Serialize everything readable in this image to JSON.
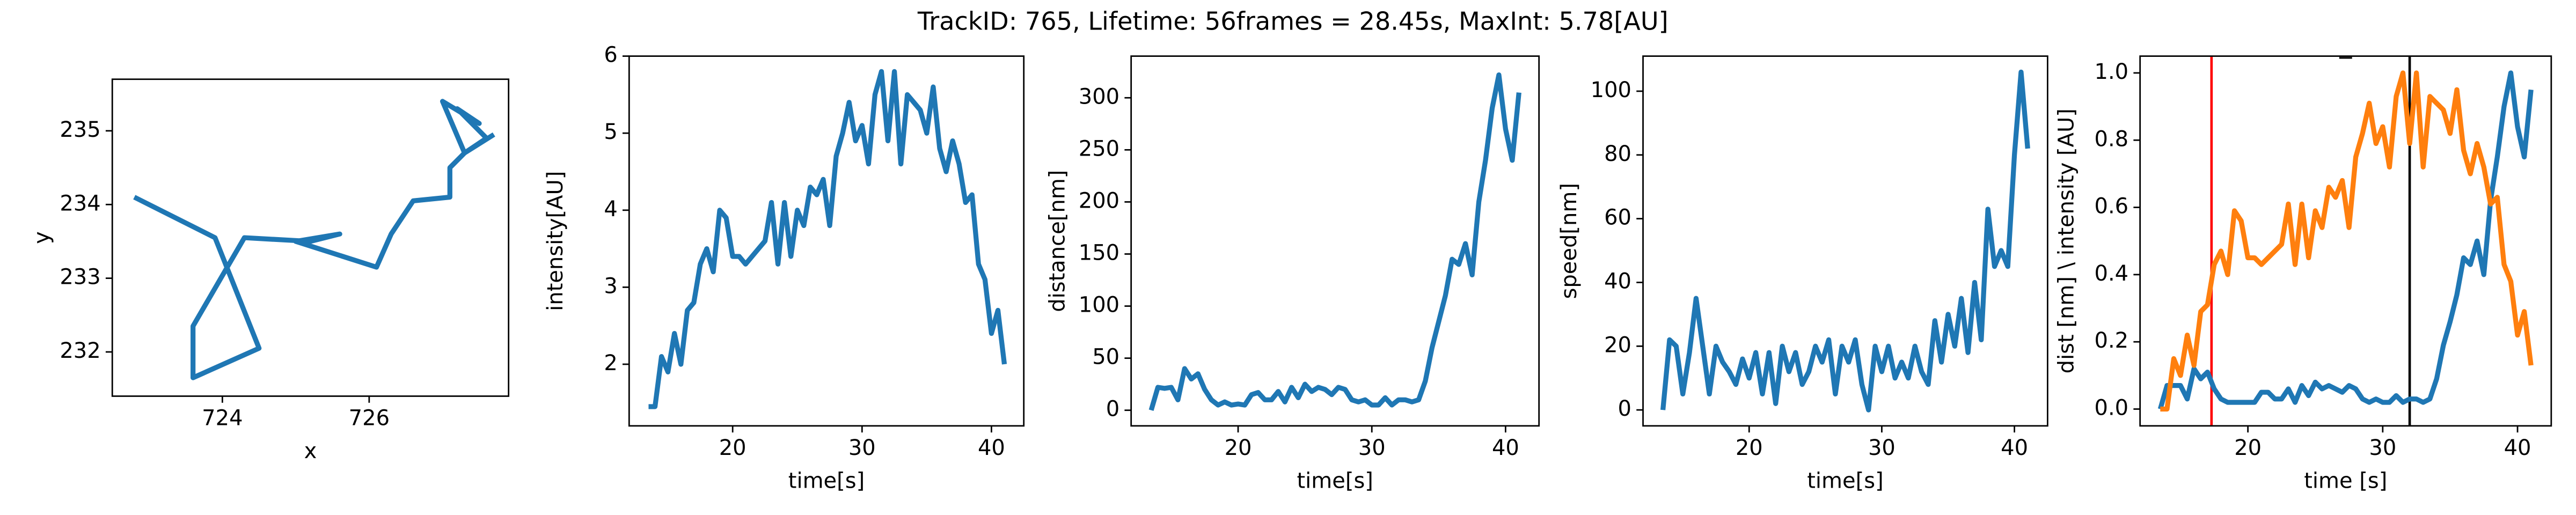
{
  "title": "TrackID: 765, Lifetime: 56frames = 28.45s, MaxInt: 5.78[AU]",
  "chart_data": [
    {
      "type": "line",
      "xlabel": "x",
      "ylabel": "y",
      "x": [
        722.8,
        723.9,
        724.5,
        723.6,
        723.6,
        724.3,
        725.2,
        725.6,
        725.0,
        726.1,
        726.3,
        726.6,
        727.1,
        727.1,
        727.3,
        727.0,
        727.5,
        727.2,
        727.6,
        727.3,
        727.7
      ],
      "series": [
        {
          "color": "#1f77b4",
          "values": [
            234.1,
            233.55,
            232.05,
            231.65,
            232.35,
            233.55,
            233.5,
            233.6,
            233.5,
            233.15,
            233.6,
            234.05,
            234.1,
            234.5,
            234.7,
            235.4,
            235.1,
            235.3,
            234.9,
            234.7,
            234.95
          ]
        }
      ],
      "xlim": [
        722.5,
        727.9
      ],
      "xticks": [
        724,
        726
      ],
      "ylim": [
        231.4,
        235.7
      ],
      "yticks": [
        232,
        233,
        234,
        235
      ]
    },
    {
      "type": "line",
      "xlabel": "time[s]",
      "ylabel": "intensity[AU]",
      "x": [
        13.5,
        14,
        14.5,
        15,
        15.5,
        16,
        16.5,
        17,
        17.5,
        18,
        18.5,
        19,
        19.5,
        20,
        20.5,
        21,
        21.5,
        22,
        22.5,
        23,
        23.5,
        24,
        24.5,
        25,
        25.5,
        26,
        26.5,
        27,
        27.5,
        28,
        28.5,
        29,
        29.5,
        30,
        30.5,
        31,
        31.5,
        32,
        32.5,
        33,
        33.5,
        34,
        34.5,
        35,
        35.5,
        36,
        36.5,
        37,
        37.5,
        38,
        38.5,
        39,
        39.5,
        40,
        40.5,
        41
      ],
      "series": [
        {
          "color": "#1f77b4",
          "values": [
            1.45,
            1.45,
            2.1,
            1.9,
            2.4,
            2.0,
            2.7,
            2.8,
            3.3,
            3.5,
            3.2,
            4.0,
            3.9,
            3.4,
            3.4,
            3.3,
            3.4,
            3.5,
            3.6,
            4.1,
            3.3,
            4.1,
            3.4,
            4.0,
            3.8,
            4.3,
            4.2,
            4.4,
            3.8,
            4.7,
            5.0,
            5.4,
            4.9,
            5.1,
            4.6,
            5.5,
            5.8,
            4.9,
            5.8,
            4.6,
            5.5,
            5.4,
            5.3,
            5.0,
            5.6,
            4.8,
            4.5,
            4.9,
            4.6,
            4.1,
            4.2,
            3.3,
            3.1,
            2.4,
            2.7,
            2.0
          ]
        }
      ],
      "xlim": [
        12,
        42.5
      ],
      "xticks": [
        20,
        30,
        40
      ],
      "ylim": [
        1.2,
        6
      ],
      "yticks": [
        2,
        3,
        4,
        5,
        6
      ]
    },
    {
      "type": "line",
      "xlabel": "time[s]",
      "ylabel": "distance[nm]",
      "x": [
        13.5,
        14,
        14.5,
        15,
        15.5,
        16,
        16.5,
        17,
        17.5,
        18,
        18.5,
        19,
        19.5,
        20,
        20.5,
        21,
        21.5,
        22,
        22.5,
        23,
        23.5,
        24,
        24.5,
        25,
        25.5,
        26,
        26.5,
        27,
        27.5,
        28,
        28.5,
        29,
        29.5,
        30,
        30.5,
        31,
        31.5,
        32,
        32.5,
        33,
        33.5,
        34,
        34.5,
        35,
        35.5,
        36,
        36.5,
        37,
        37.5,
        38,
        38.5,
        39,
        39.5,
        40,
        40.5,
        41
      ],
      "series": [
        {
          "color": "#1f77b4",
          "values": [
            0,
            22,
            21,
            22,
            10,
            40,
            30,
            35,
            20,
            10,
            5,
            8,
            5,
            6,
            5,
            15,
            17,
            10,
            10,
            18,
            8,
            22,
            12,
            25,
            18,
            22,
            20,
            15,
            22,
            20,
            10,
            8,
            10,
            5,
            5,
            12,
            5,
            10,
            10,
            8,
            10,
            28,
            60,
            85,
            110,
            145,
            140,
            160,
            130,
            200,
            240,
            290,
            322,
            270,
            240,
            305
          ]
        }
      ],
      "xlim": [
        12,
        42.5
      ],
      "xticks": [
        20,
        30,
        40
      ],
      "ylim": [
        -15,
        340
      ],
      "yticks": [
        0,
        50,
        100,
        150,
        200,
        250,
        300
      ]
    },
    {
      "type": "line",
      "xlabel": "time[s]",
      "ylabel": "speed[nm]",
      "x": [
        13.5,
        14,
        14.5,
        15,
        15.5,
        16,
        16.5,
        17,
        17.5,
        18,
        18.5,
        19,
        19.5,
        20,
        20.5,
        21,
        21.5,
        22,
        22.5,
        23,
        23.5,
        24,
        24.5,
        25,
        25.5,
        26,
        26.5,
        27,
        27.5,
        28,
        28.5,
        29,
        29.5,
        30,
        30.5,
        31,
        31.5,
        32,
        32.5,
        33,
        33.5,
        34,
        34.5,
        35,
        35.5,
        36,
        36.5,
        37,
        37.5,
        38,
        38.5,
        39,
        39.5,
        40,
        40.5,
        41
      ],
      "series": [
        {
          "color": "#1f77b4",
          "values": [
            0,
            22,
            20,
            5,
            18,
            35,
            20,
            5,
            20,
            15,
            12,
            8,
            16,
            10,
            18,
            5,
            18,
            2,
            20,
            12,
            18,
            8,
            12,
            20,
            15,
            22,
            5,
            20,
            15,
            22,
            8,
            0,
            20,
            12,
            20,
            10,
            15,
            10,
            20,
            12,
            8,
            28,
            15,
            30,
            20,
            35,
            18,
            40,
            22,
            63,
            45,
            50,
            45,
            80,
            106,
            82
          ]
        }
      ],
      "xlim": [
        12,
        42.5
      ],
      "xticks": [
        20,
        30,
        40
      ],
      "ylim": [
        -5,
        111
      ],
      "yticks": [
        0,
        20,
        40,
        60,
        80,
        100
      ]
    },
    {
      "type": "line",
      "title": "_",
      "xlabel": "time [s]",
      "ylabel": "dist [nm] \\ intensity [AU]",
      "x": [
        13.5,
        14,
        14.5,
        15,
        15.5,
        16,
        16.5,
        17,
        17.5,
        18,
        18.5,
        19,
        19.5,
        20,
        20.5,
        21,
        21.5,
        22,
        22.5,
        23,
        23.5,
        24,
        24.5,
        25,
        25.5,
        26,
        26.5,
        27,
        27.5,
        28,
        28.5,
        29,
        29.5,
        30,
        30.5,
        31,
        31.5,
        32,
        32.5,
        33,
        33.5,
        34,
        34.5,
        35,
        35.5,
        36,
        36.5,
        37,
        37.5,
        38,
        38.5,
        39,
        39.5,
        40,
        40.5,
        41
      ],
      "series": [
        {
          "color": "#1f77b4",
          "values": [
            0,
            0.07,
            0.07,
            0.07,
            0.03,
            0.12,
            0.09,
            0.11,
            0.06,
            0.03,
            0.02,
            0.02,
            0.02,
            0.02,
            0.02,
            0.05,
            0.05,
            0.03,
            0.03,
            0.06,
            0.02,
            0.07,
            0.04,
            0.08,
            0.06,
            0.07,
            0.06,
            0.05,
            0.07,
            0.06,
            0.03,
            0.02,
            0.03,
            0.02,
            0.02,
            0.04,
            0.02,
            0.03,
            0.03,
            0.02,
            0.03,
            0.09,
            0.19,
            0.26,
            0.34,
            0.45,
            0.43,
            0.5,
            0.4,
            0.62,
            0.75,
            0.9,
            1.0,
            0.84,
            0.75,
            0.95
          ]
        },
        {
          "color": "#ff7f0e",
          "values": [
            0,
            0,
            0.15,
            0.1,
            0.22,
            0.13,
            0.29,
            0.31,
            0.43,
            0.47,
            0.4,
            0.59,
            0.56,
            0.45,
            0.45,
            0.43,
            0.45,
            0.47,
            0.49,
            0.61,
            0.43,
            0.61,
            0.45,
            0.59,
            0.54,
            0.66,
            0.63,
            0.68,
            0.54,
            0.75,
            0.82,
            0.91,
            0.79,
            0.84,
            0.72,
            0.93,
            1.0,
            0.79,
            1.0,
            0.72,
            0.93,
            0.91,
            0.89,
            0.82,
            0.95,
            0.77,
            0.7,
            0.79,
            0.72,
            0.61,
            0.63,
            0.43,
            0.38,
            0.22,
            0.29,
            0.13
          ]
        }
      ],
      "vlines": [
        {
          "x": 17.3,
          "color": "#ff0000"
        },
        {
          "x": 32.0,
          "color": "#000000"
        }
      ],
      "xlim": [
        12,
        42.5
      ],
      "xticks": [
        20,
        30,
        40
      ],
      "ylim": [
        -0.05,
        1.05
      ],
      "yticks": [
        {
          "value": 0,
          "label": "0.0"
        },
        {
          "value": 0.2,
          "label": "0.2"
        },
        {
          "value": 0.4,
          "label": "0.4"
        },
        {
          "value": 0.6,
          "label": "0.6"
        },
        {
          "value": 0.8,
          "label": "0.8"
        },
        {
          "value": 1,
          "label": "1.0"
        }
      ]
    }
  ]
}
